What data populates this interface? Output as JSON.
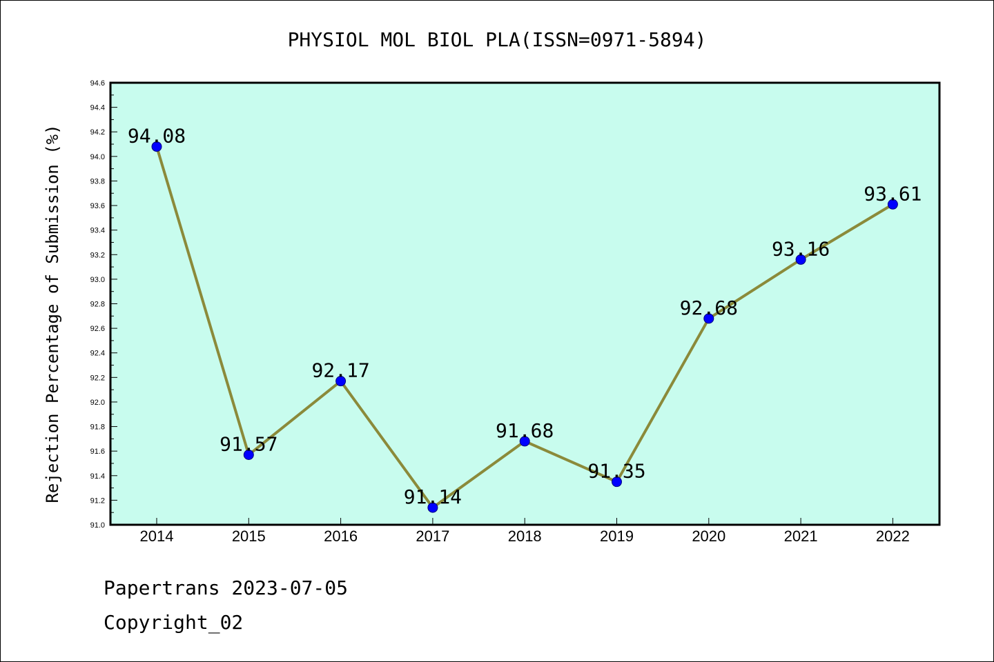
{
  "chart_data": {
    "type": "line",
    "title": "PHYSIOL MOL BIOL PLA(ISSN=0971-5894)",
    "xlabel": "",
    "ylabel": "Rejection Percentage of Submission (%)",
    "categories": [
      "2014",
      "2015",
      "2016",
      "2017",
      "2018",
      "2019",
      "2020",
      "2021",
      "2022"
    ],
    "series": [
      {
        "values": [
          94.08,
          91.57,
          92.17,
          91.14,
          91.68,
          91.35,
          92.68,
          93.16,
          93.61
        ]
      }
    ],
    "data_labels": [
      "94.08",
      "91.57",
      "92.17",
      "91.14",
      "91.68",
      "91.35",
      "92.68",
      "93.16",
      "93.61"
    ],
    "ylim": [
      91.0,
      94.6
    ],
    "yticks": [
      "91.0",
      "91.2",
      "91.4",
      "91.6",
      "91.8",
      "92.0",
      "92.2",
      "92.4",
      "92.6",
      "92.8",
      "93.0",
      "93.2",
      "93.4",
      "93.6",
      "93.8",
      "94.0",
      "94.2",
      "94.4",
      "94.6"
    ],
    "grid": false,
    "colors": {
      "plot_background": "#c8fcee",
      "line": "#8b8a3a",
      "marker": "#0000ff",
      "marker_edge": "#000080"
    }
  },
  "footer": {
    "credit": "Papertrans 2023-07-05",
    "copyright": "Copyright_02"
  }
}
